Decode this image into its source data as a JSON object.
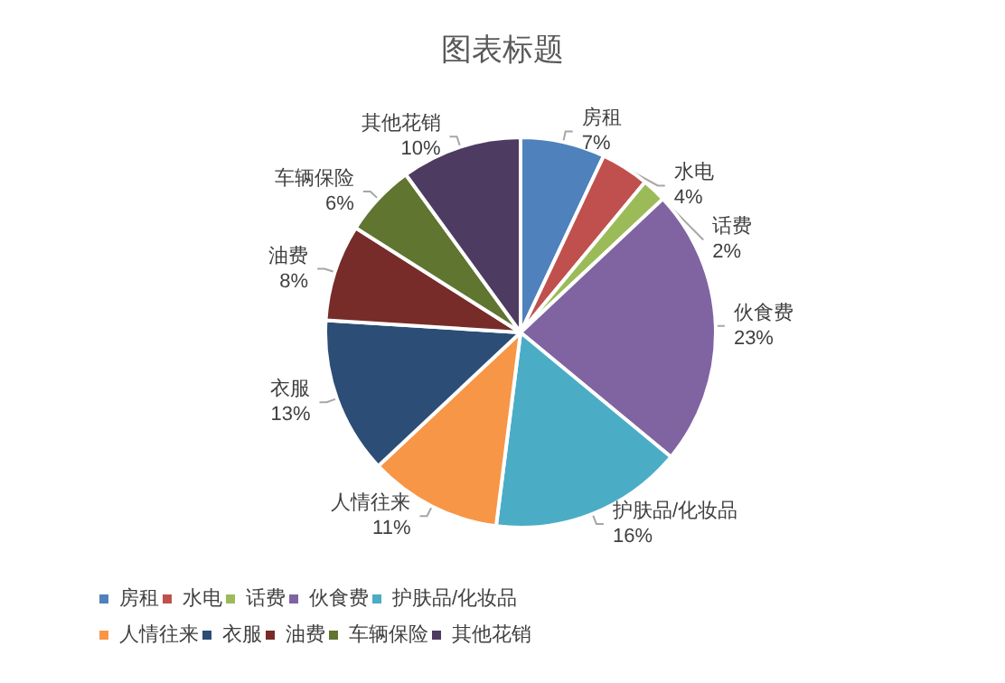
{
  "chart_data": {
    "type": "pie",
    "title": "图表标题",
    "categories": [
      "房租",
      "水电",
      "话费",
      "伙食费",
      "护肤品/化妆品",
      "人情往来",
      "衣服",
      "油费",
      "车辆保险",
      "其他花销"
    ],
    "values": [
      7,
      4,
      2,
      23,
      16,
      11,
      13,
      8,
      6,
      10
    ],
    "colors": [
      "#4f81bd",
      "#c0504d",
      "#9bbb59",
      "#8064a2",
      "#4bacc6",
      "#f79646",
      "#2c4d75",
      "#772c2a",
      "#5f7530",
      "#4d3b62"
    ],
    "value_labels": [
      "7%",
      "4%",
      "2%",
      "23%",
      "16%",
      "11%",
      "13%",
      "8%",
      "6%",
      "10%"
    ],
    "legend": "bottom"
  }
}
